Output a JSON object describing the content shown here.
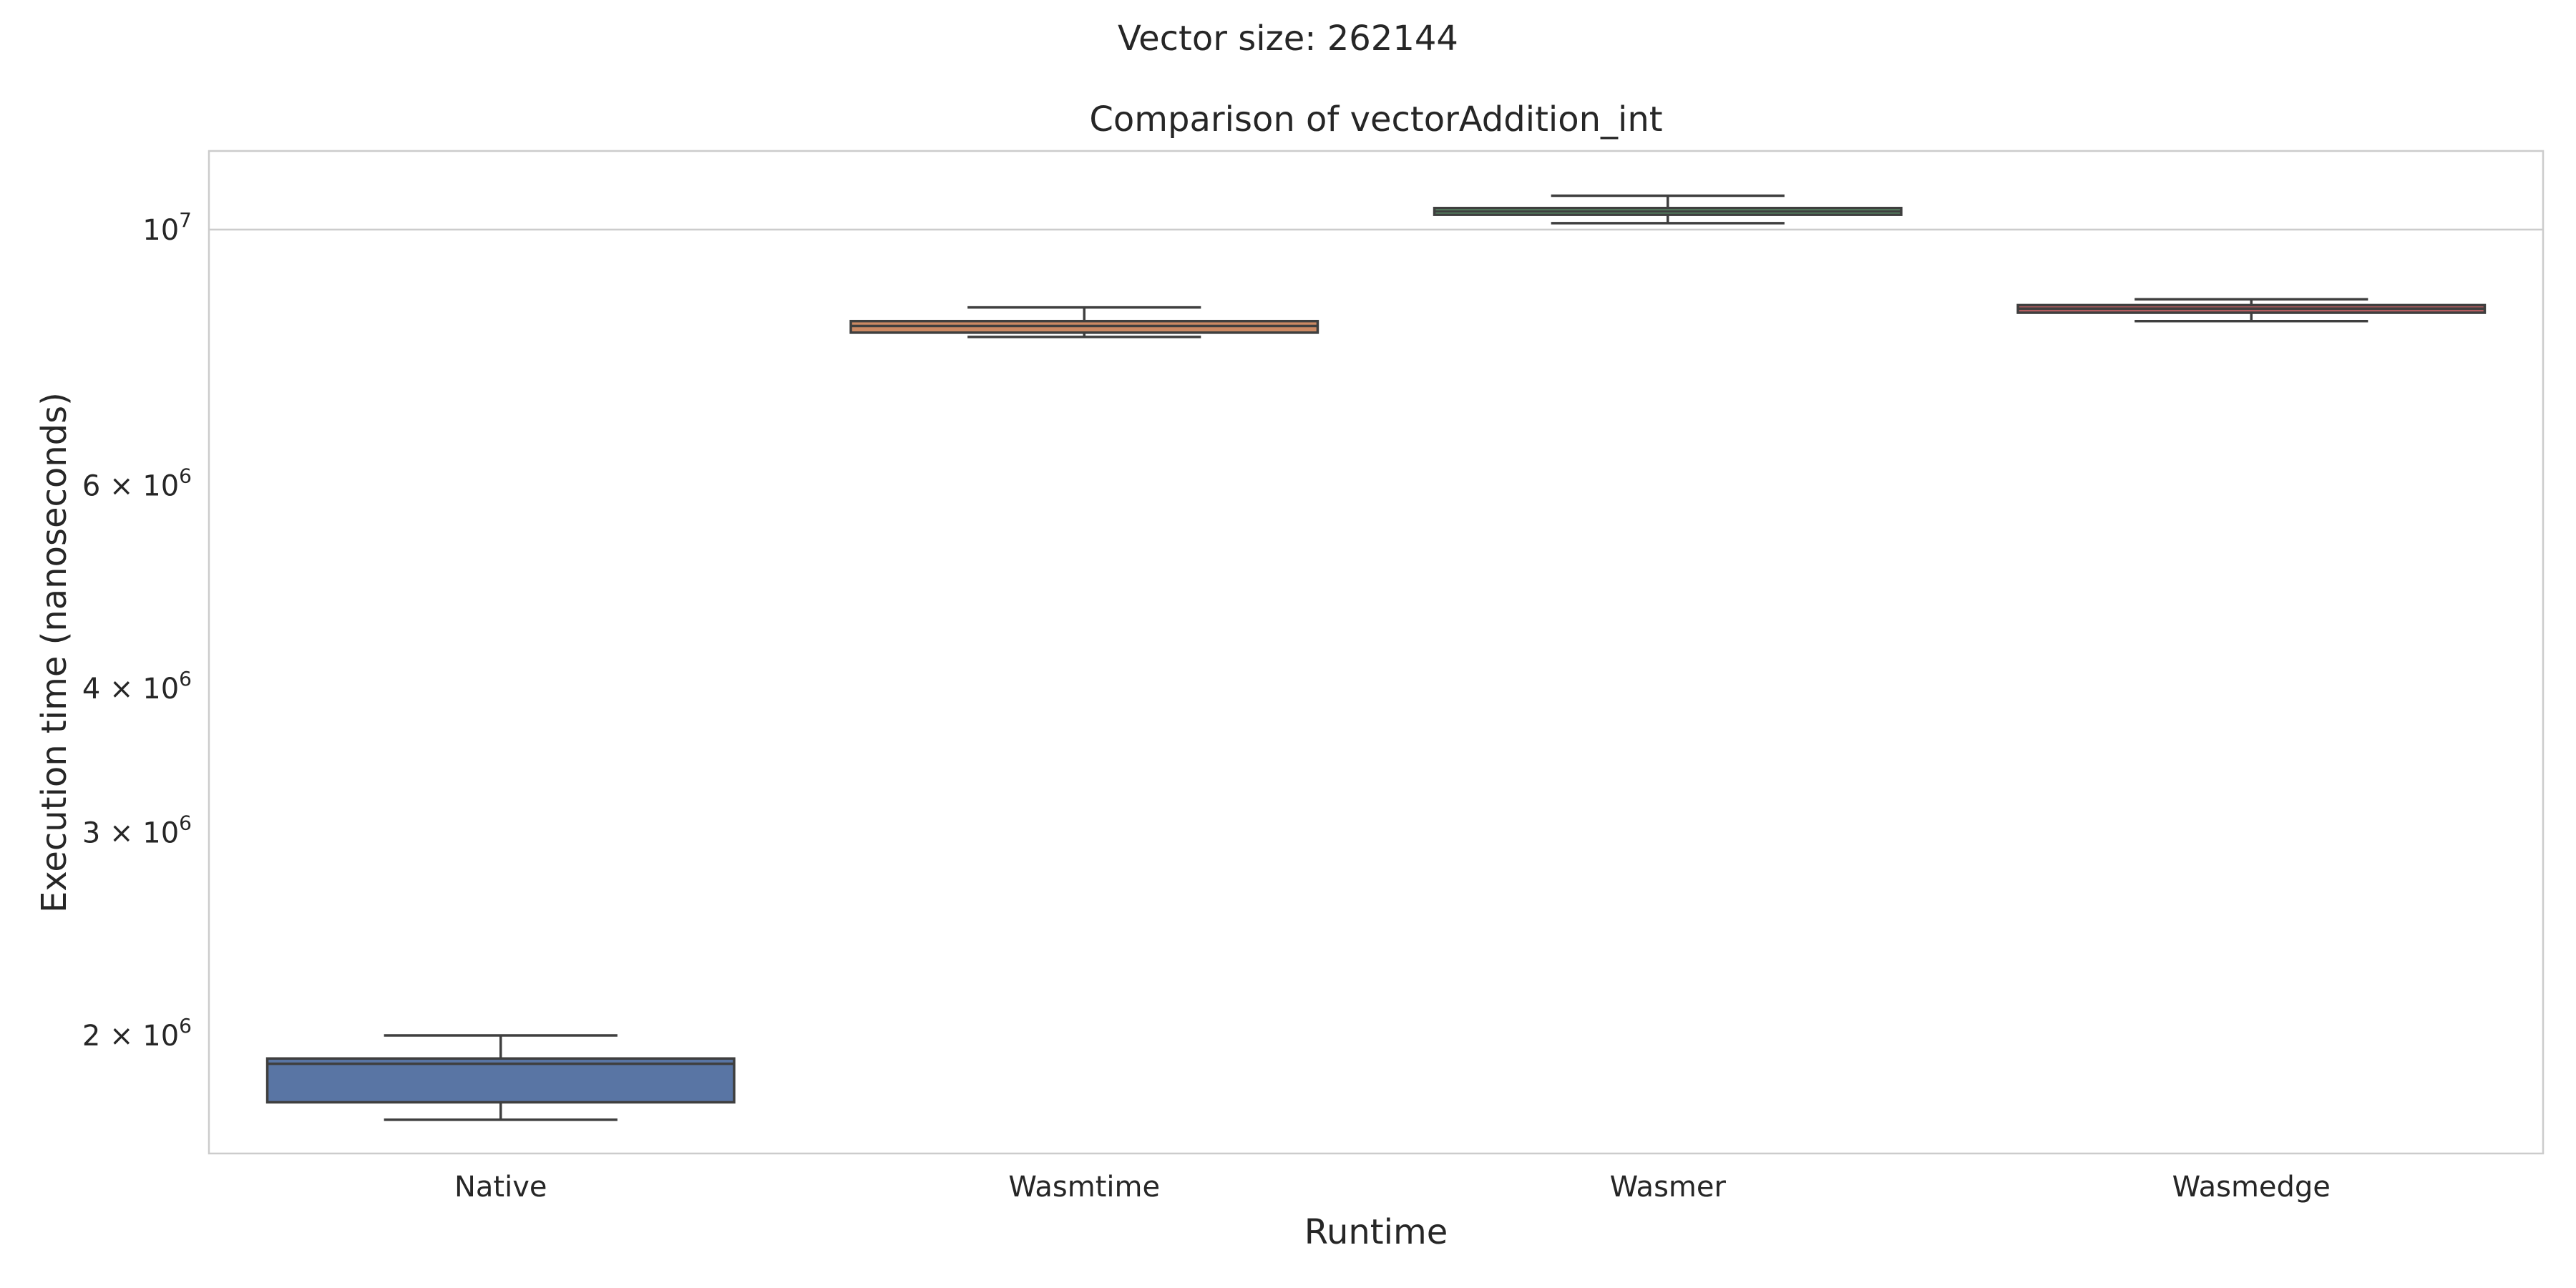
{
  "suptitle": "Vector size: 262144",
  "chart_data": {
    "type": "box",
    "title": "Comparison of vectorAddition_int",
    "xlabel": "Runtime",
    "ylabel": "Execution time (nanoseconds)",
    "yscale": "log",
    "ylim": [
      1580000,
      11700000
    ],
    "yticks": [
      {
        "value": 2000000,
        "mantissa": "2",
        "exponent": "6"
      },
      {
        "value": 3000000,
        "mantissa": "3",
        "exponent": "6"
      },
      {
        "value": 4000000,
        "mantissa": "4",
        "exponent": "6"
      },
      {
        "value": 6000000,
        "mantissa": "6",
        "exponent": "6"
      },
      {
        "value": 10000000,
        "mantissa": "",
        "exponent": "7"
      }
    ],
    "grid": true,
    "categories": [
      "Native",
      "Wasmtime",
      "Wasmer",
      "Wasmedge"
    ],
    "boxes": [
      {
        "name": "Native",
        "color": "#5975a4",
        "whisker_low": 1690000,
        "q1": 1750000,
        "median": 1890000,
        "q3": 1910000,
        "whisker_high": 2000000
      },
      {
        "name": "Wasmtime",
        "color": "#cc8963",
        "whisker_low": 8070000,
        "q1": 8140000,
        "median": 8250000,
        "q3": 8330000,
        "whisker_high": 8560000
      },
      {
        "name": "Wasmer",
        "color": "#5f9e6e",
        "whisker_low": 10130000,
        "q1": 10300000,
        "median": 10370000,
        "q3": 10440000,
        "whisker_high": 10700000
      },
      {
        "name": "Wasmedge",
        "color": "#b55d60",
        "whisker_low": 8330000,
        "q1": 8470000,
        "median": 8540000,
        "q3": 8600000,
        "whisker_high": 8700000
      }
    ]
  }
}
